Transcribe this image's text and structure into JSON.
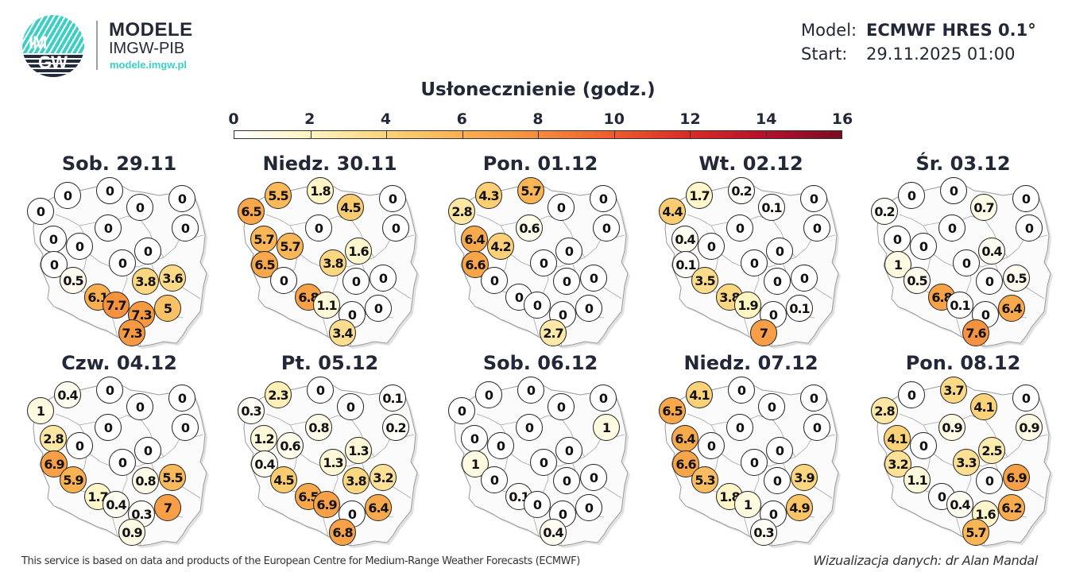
{
  "header": {
    "logo_text_top": "IM",
    "logo_text_bottom": "GW",
    "brand_title": "MODELE",
    "brand_subtitle": "IMGW-PIB",
    "brand_url": "modele.imgw.pl",
    "model_label": "Model:",
    "model_value": "ECMWF HRES 0.1°",
    "start_label": "Start:",
    "start_value": "29.11.2025 01:00"
  },
  "colorbar": {
    "title": "Usłonecznienie (godz.)",
    "ticks": [
      "0",
      "2",
      "4",
      "6",
      "8",
      "10",
      "12",
      "14",
      "16"
    ],
    "min": 0,
    "max": 16,
    "colors": [
      "#ffffff",
      "#fff4c0",
      "#fcd47a",
      "#f9b050",
      "#f58c3c",
      "#ee5b2c",
      "#d92b26",
      "#b5102a",
      "#7a0c22"
    ]
  },
  "station_positions": [
    [
      21,
      40
    ],
    [
      55,
      20
    ],
    [
      108,
      14
    ],
    [
      146,
      35
    ],
    [
      199,
      24
    ],
    [
      203,
      61
    ],
    [
      106,
      61
    ],
    [
      37,
      75
    ],
    [
      70,
      84
    ],
    [
      38,
      107
    ],
    [
      156,
      90
    ],
    [
      124,
      105
    ],
    [
      62,
      127
    ],
    [
      93,
      148
    ],
    [
      116,
      158
    ],
    [
      148,
      170
    ],
    [
      136,
      193
    ],
    [
      153,
      128
    ],
    [
      187,
      124
    ],
    [
      181,
      162
    ]
  ],
  "panels": [
    {
      "title": "Sob. 29.11",
      "values": [
        "0",
        "0",
        "0",
        "0",
        "0",
        "0",
        "0",
        "0",
        "0",
        "0",
        "0",
        "0",
        "0.5",
        "6.1",
        "7.7",
        "7.3",
        "7.3",
        "3.8",
        "3.6",
        "5"
      ]
    },
    {
      "title": "Niedz. 30.11",
      "values": [
        "6.5",
        "5.5",
        "1.8",
        "4.5",
        "0",
        "0",
        "0",
        "5.7",
        "5.7",
        "6.5",
        "1.6",
        "3.8",
        "0",
        "6.8",
        "1.1",
        "0",
        "3.4",
        "0",
        "0",
        "0"
      ]
    },
    {
      "title": "Pon. 01.12",
      "values": [
        "2.8",
        "4.3",
        "5.7",
        "0",
        "0",
        "0",
        "0.6",
        "6.4",
        "4.2",
        "6.6",
        "0",
        "0",
        "0",
        "0",
        "0",
        "0",
        "2.7",
        "0",
        "0",
        "0"
      ]
    },
    {
      "title": "Wt. 02.12",
      "values": [
        "4.4",
        "1.7",
        "0.2",
        "0.1",
        "0",
        "0",
        "0",
        "0.4",
        "0",
        "0.1",
        "0",
        "0",
        "3.5",
        "3.8",
        "1.9",
        "0",
        "7",
        "0",
        "0",
        "0.1"
      ]
    },
    {
      "title": "Śr. 03.12",
      "values": [
        "0.2",
        "0",
        "0",
        "0.7",
        "0",
        "0",
        "0",
        "0",
        "0",
        "1",
        "0.4",
        "0",
        "0.5",
        "6.8",
        "0.1",
        "0",
        "7.6",
        "0",
        "0.5",
        "6.4"
      ]
    },
    {
      "title": "Czw. 04.12",
      "values": [
        "1",
        "0.4",
        "0",
        "0",
        "0",
        "0",
        "0",
        "2.8",
        "0",
        "6.9",
        "0",
        "0",
        "5.9",
        "1.7",
        "0.4",
        "0.3",
        "0.9",
        "0.8",
        "5.5",
        "7"
      ]
    },
    {
      "title": "Pt. 05.12",
      "values": [
        "0.3",
        "2.3",
        "0",
        "0",
        "0.1",
        "0.2",
        "0.8",
        "1.2",
        "0.6",
        "0.4",
        "1.3",
        "1.3",
        "4.5",
        "6.5",
        "6.9",
        "0",
        "6.8",
        "3.8",
        "3.2",
        "6.4"
      ]
    },
    {
      "title": "Sob. 06.12",
      "values": [
        "0",
        "0",
        "0",
        "0",
        "0",
        "1",
        "0",
        "0",
        "0",
        "1",
        "0",
        "0",
        "0",
        "0.1",
        "0",
        "0",
        "0.4",
        "0",
        "0",
        "0"
      ]
    },
    {
      "title": "Niedz. 07.12",
      "values": [
        "6.5",
        "4.1",
        "0",
        "0",
        "0",
        "0",
        "0",
        "6.4",
        "0",
        "6.6",
        "0",
        "0",
        "5.3",
        "1.8",
        "1",
        "0",
        "0.3",
        "0",
        "3.9",
        "4.9"
      ]
    },
    {
      "title": "Pon. 08.12",
      "values": [
        "2.8",
        "0",
        "3.7",
        "4.1",
        "0",
        "0.9",
        "0.9",
        "4.1",
        "0",
        "3.2",
        "2.5",
        "3.3",
        "1.1",
        "0",
        "0.4",
        "1.6",
        "5.7",
        "0",
        "6.9",
        "6.2"
      ]
    }
  ],
  "footer": {
    "attribution": "This service is based on data and products of the European Centre for Medium-Range Weather Forecasts (ECMWF)",
    "credit": "Wizualizacja danych: dr Alan Mandal"
  }
}
